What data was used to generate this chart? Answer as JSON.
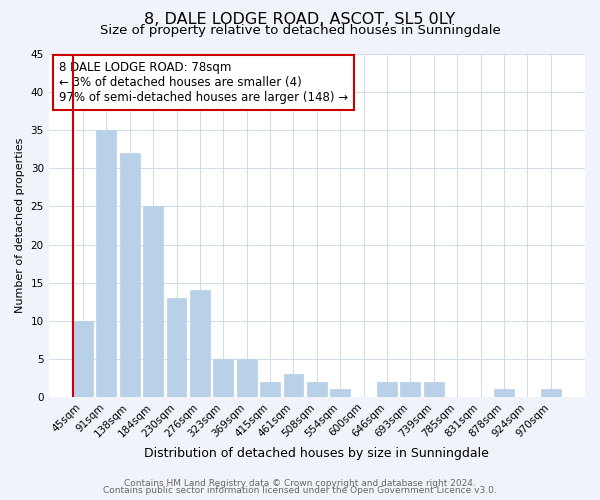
{
  "title": "8, DALE LODGE ROAD, ASCOT, SL5 0LY",
  "subtitle": "Size of property relative to detached houses in Sunningdale",
  "xlabel": "Distribution of detached houses by size in Sunningdale",
  "ylabel": "Number of detached properties",
  "bar_labels": [
    "45sqm",
    "91sqm",
    "138sqm",
    "184sqm",
    "230sqm",
    "276sqm",
    "323sqm",
    "369sqm",
    "415sqm",
    "461sqm",
    "508sqm",
    "554sqm",
    "600sqm",
    "646sqm",
    "693sqm",
    "739sqm",
    "785sqm",
    "831sqm",
    "878sqm",
    "924sqm",
    "970sqm"
  ],
  "bar_values": [
    10,
    35,
    32,
    25,
    13,
    14,
    5,
    5,
    2,
    3,
    2,
    1,
    0,
    2,
    2,
    2,
    0,
    0,
    1,
    0,
    1
  ],
  "bar_color": "#b8d0e8",
  "highlight_edge_color": "#cc0000",
  "annotation_text_line1": "8 DALE LODGE ROAD: 78sqm",
  "annotation_text_line2": "← 3% of detached houses are smaller (4)",
  "annotation_text_line3": "97% of semi-detached houses are larger (148) →",
  "ylim": [
    0,
    45
  ],
  "yticks": [
    0,
    5,
    10,
    15,
    20,
    25,
    30,
    35,
    40,
    45
  ],
  "grid_color": "#d0dce8",
  "plot_bg_color": "#ffffff",
  "fig_bg_color": "#f0f4fa",
  "footer_line1": "Contains HM Land Registry data © Crown copyright and database right 2024.",
  "footer_line2": "Contains public sector information licensed under the Open Government Licence v3.0.",
  "title_fontsize": 11.5,
  "subtitle_fontsize": 9.5,
  "xlabel_fontsize": 9,
  "ylabel_fontsize": 8,
  "tick_fontsize": 7.5,
  "annotation_fontsize": 8.5,
  "footer_fontsize": 6.5
}
